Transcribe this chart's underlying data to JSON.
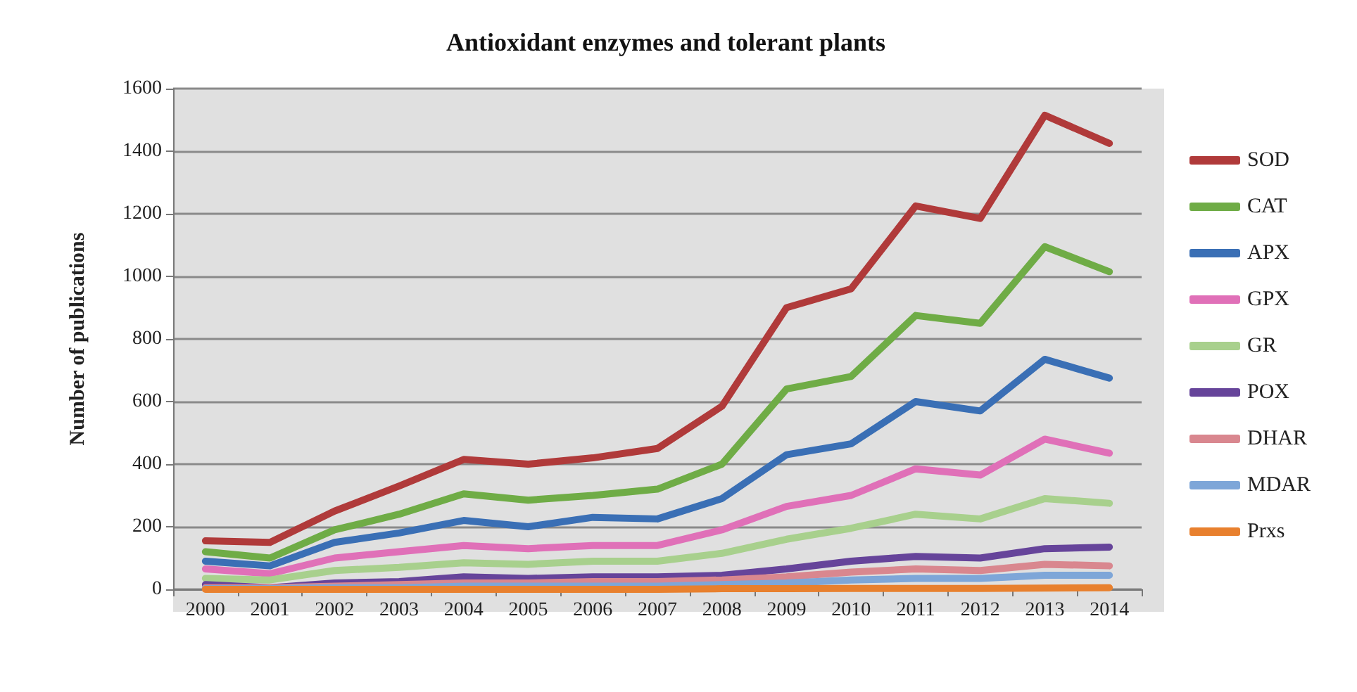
{
  "chart_data": {
    "type": "line",
    "title": "Antioxidant enzymes and tolerant plants",
    "ylabel": "Number of publications",
    "categories": [
      "2000",
      "2001",
      "2002",
      "2003",
      "2004",
      "2005",
      "2006",
      "2007",
      "2008",
      "2009",
      "2010",
      "2011",
      "2012",
      "2013",
      "2014"
    ],
    "ylim": [
      0,
      1600
    ],
    "yticks": [
      0,
      200,
      400,
      600,
      800,
      1000,
      1200,
      1400,
      1600
    ],
    "grid": "y",
    "legend": "right",
    "marker": "none",
    "line_style": "solid",
    "series": [
      {
        "name": "SOD",
        "color": "#b03a3a",
        "values": [
          155,
          150,
          250,
          330,
          415,
          400,
          420,
          450,
          585,
          900,
          960,
          1225,
          1185,
          1515,
          1425
        ]
      },
      {
        "name": "CAT",
        "color": "#6fac46",
        "values": [
          120,
          100,
          190,
          240,
          305,
          285,
          300,
          320,
          400,
          640,
          680,
          875,
          850,
          1095,
          1015
        ]
      },
      {
        "name": "APX",
        "color": "#3a6fb5",
        "values": [
          90,
          75,
          150,
          180,
          220,
          200,
          230,
          225,
          290,
          430,
          465,
          600,
          570,
          735,
          675
        ]
      },
      {
        "name": "GPX",
        "color": "#e070b8",
        "values": [
          65,
          50,
          100,
          120,
          140,
          130,
          140,
          140,
          190,
          265,
          300,
          385,
          365,
          480,
          435
        ]
      },
      {
        "name": "GR",
        "color": "#a8d08d",
        "values": [
          35,
          30,
          60,
          70,
          85,
          80,
          90,
          90,
          115,
          160,
          195,
          240,
          225,
          290,
          275
        ]
      },
      {
        "name": "POX",
        "color": "#66449a",
        "values": [
          15,
          5,
          20,
          25,
          40,
          35,
          40,
          40,
          45,
          65,
          90,
          105,
          100,
          130,
          135
        ]
      },
      {
        "name": "DHAR",
        "color": "#d9878f",
        "values": [
          5,
          5,
          10,
          15,
          20,
          20,
          25,
          25,
          30,
          40,
          55,
          65,
          60,
          80,
          75
        ]
      },
      {
        "name": "MDAR",
        "color": "#7ea6d8",
        "values": [
          2,
          2,
          5,
          5,
          10,
          10,
          10,
          10,
          15,
          20,
          30,
          35,
          35,
          45,
          45
        ]
      },
      {
        "name": "Prxs",
        "color": "#e8802e",
        "values": [
          0,
          0,
          0,
          0,
          0,
          0,
          0,
          0,
          2,
          2,
          3,
          3,
          3,
          4,
          5
        ]
      }
    ]
  }
}
